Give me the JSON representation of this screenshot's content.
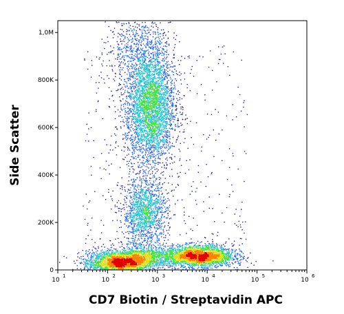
{
  "chart_data": {
    "type": "scatter",
    "subtype": "flow-cytometry-density-dot-plot",
    "xlabel": "CD7 Biotin / Streptavidin APC",
    "ylabel": "Side Scatter",
    "x_scale": "log",
    "xlim": [
      10,
      1000000
    ],
    "x_ticks": [
      {
        "base": "10",
        "exp": "1"
      },
      {
        "base": "10",
        "exp": "2"
      },
      {
        "base": "10",
        "exp": "3"
      },
      {
        "base": "10",
        "exp": "4"
      },
      {
        "base": "10",
        "exp": "5"
      },
      {
        "base": "10",
        "exp": "6"
      }
    ],
    "y_scale": "linear",
    "ylim": [
      0,
      1050000
    ],
    "y_ticks": [
      {
        "value": 0,
        "label": "0"
      },
      {
        "value": 200000,
        "label": "200K"
      },
      {
        "value": 400000,
        "label": "400K"
      },
      {
        "value": 600000,
        "label": "600K"
      },
      {
        "value": 800000,
        "label": "800K"
      },
      {
        "value": 1000000,
        "label": "1,0M"
      }
    ],
    "color_scale": [
      "#1a1aa0",
      "#2060ff",
      "#20c0d0",
      "#40e040",
      "#e0e020",
      "#ff8000",
      "#e00000"
    ],
    "populations": [
      {
        "x": 170,
        "y": 30000,
        "x_spread_decades": 0.32,
        "y_spread": 25000,
        "count": 2600
      },
      {
        "x": 500,
        "y": 55000,
        "x_spread_decades": 0.28,
        "y_spread": 22000,
        "count": 900
      },
      {
        "x": 6500,
        "y": 60000,
        "x_spread_decades": 0.35,
        "y_spread": 22000,
        "count": 2800
      },
      {
        "x": 550,
        "y": 240000,
        "x_spread_decades": 0.22,
        "y_spread": 70000,
        "count": 1400
      },
      {
        "x": 700,
        "y": 690000,
        "x_spread_decades": 0.25,
        "y_spread": 130000,
        "count": 3600
      },
      {
        "x": 400,
        "y": 950000,
        "x_spread_decades": 0.3,
        "y_spread": 80000,
        "count": 500
      }
    ],
    "grid": false,
    "legend": "none"
  }
}
